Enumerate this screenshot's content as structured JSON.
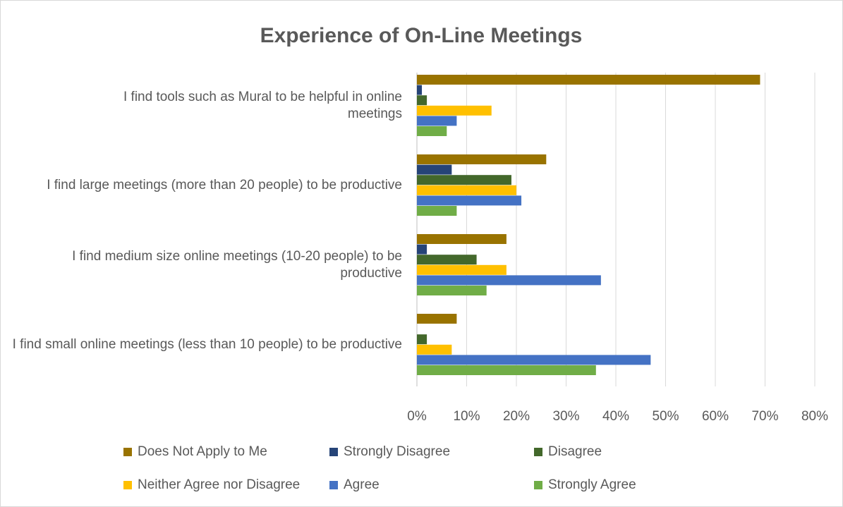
{
  "chart_data": {
    "type": "hbar",
    "title": "Experience of On-Line Meetings",
    "categories": [
      "I find tools such as Mural to be helpful in online meetings",
      "I find large meetings (more than 20 people) to be productive",
      "I find medium size online meetings (10-20 people) to be productive",
      "I find small online meetings (less than 10 people) to be productive"
    ],
    "series": [
      {
        "name": "Does Not Apply to Me",
        "color": "#997300",
        "values": [
          69,
          26,
          18,
          8
        ]
      },
      {
        "name": "Strongly Disagree",
        "color": "#264478",
        "values": [
          1,
          7,
          2,
          0
        ]
      },
      {
        "name": "Disagree",
        "color": "#43682b",
        "values": [
          2,
          19,
          12,
          2
        ]
      },
      {
        "name": "Neither Agree nor Disagree",
        "color": "#ffc000",
        "values": [
          15,
          20,
          18,
          7
        ]
      },
      {
        "name": "Agree",
        "color": "#4472c4",
        "values": [
          8,
          21,
          37,
          47
        ]
      },
      {
        "name": "Strongly Agree",
        "color": "#70ad47",
        "values": [
          6,
          8,
          14,
          36
        ]
      }
    ],
    "xlim": [
      0,
      80
    ],
    "xticks": [
      {
        "value": 0,
        "label": "0%"
      },
      {
        "value": 10,
        "label": "10%"
      },
      {
        "value": 20,
        "label": "20%"
      },
      {
        "value": 30,
        "label": "30%"
      },
      {
        "value": 40,
        "label": "40%"
      },
      {
        "value": 50,
        "label": "50%"
      },
      {
        "value": 60,
        "label": "60%"
      },
      {
        "value": 70,
        "label": "70%"
      },
      {
        "value": 80,
        "label": "80%"
      }
    ],
    "grid": true,
    "legend": "bottom"
  }
}
